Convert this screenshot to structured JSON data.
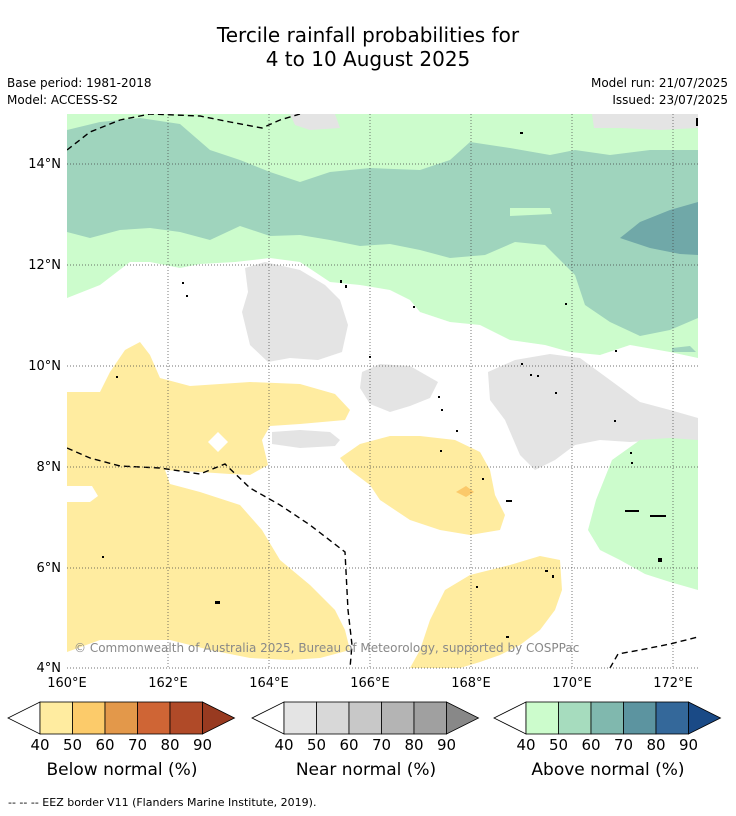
{
  "title": {
    "line1": "Tercile rainfall probabilities for",
    "line2": "4 to 10 August 2025"
  },
  "meta": {
    "base_period": "Base period: 1981-2018",
    "model": "Model: ACCESS-S2",
    "model_run": "Model run: 21/07/2025",
    "issued": "Issued: 23/07/2025"
  },
  "map": {
    "lat_labels": [
      "14°N",
      "12°N",
      "10°N",
      "8°N",
      "6°N",
      "4°N"
    ],
    "lon_labels": [
      "160°E",
      "162°E",
      "164°E",
      "166°E",
      "168°E",
      "170°E",
      "172°E"
    ],
    "copyright": "© Commonwealth of Australia 2025, Bureau of Meteorology, supported by COSPPac",
    "colors": {
      "below_50": "#ffeca0",
      "below_60": "#fbc96a",
      "near_50": "#e4e4e4",
      "above_50": "#ccfccc",
      "above_60": "#9fd4bd",
      "above_70": "#70a8a8"
    }
  },
  "colorbars": [
    {
      "label": "Below normal (%)",
      "ticks": [
        "40",
        "50",
        "60",
        "70",
        "80",
        "90"
      ],
      "colors": [
        "#ffffff",
        "#ffeca0",
        "#fccb6a",
        "#e3984a",
        "#cf6535",
        "#b04a28",
        "#983a20"
      ]
    },
    {
      "label": "Near normal (%)",
      "ticks": [
        "40",
        "50",
        "60",
        "70",
        "80",
        "90"
      ],
      "colors": [
        "#ffffff",
        "#e4e4e4",
        "#d8d8d8",
        "#c8c8c8",
        "#b4b4b4",
        "#a0a0a0",
        "#888888"
      ]
    },
    {
      "label": "Above normal (%)",
      "ticks": [
        "40",
        "50",
        "60",
        "70",
        "80",
        "90"
      ],
      "colors": [
        "#ffffff",
        "#ccfccc",
        "#a6dcbe",
        "#80b8ae",
        "#5c94a0",
        "#34689a",
        "#1a4a86"
      ]
    }
  ],
  "footer": "--  --  -- EEZ border V11 (Flanders Marine Institute, 2019)."
}
